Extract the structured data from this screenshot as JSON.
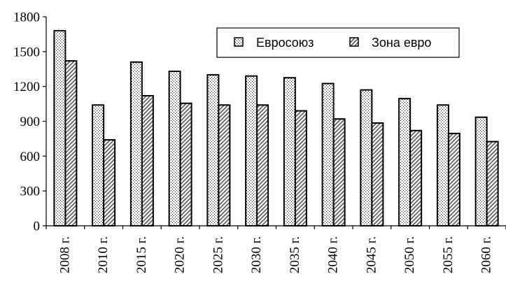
{
  "chart_data": {
    "type": "bar",
    "categories": [
      "2008 г.",
      "2010 г.",
      "2015 г.",
      "2020 г.",
      "2025 г.",
      "2030 г.",
      "2035 г.",
      "2040 г.",
      "2045 г.",
      "2050 г.",
      "2055 г.",
      "2060 г."
    ],
    "series": [
      {
        "name": "Евросоюз",
        "values": [
          1680,
          1040,
          1410,
          1330,
          1300,
          1290,
          1275,
          1225,
          1170,
          1095,
          1040,
          935
        ]
      },
      {
        "name": "Зона евро",
        "values": [
          1420,
          740,
          1120,
          1055,
          1040,
          1040,
          990,
          920,
          885,
          820,
          795,
          725
        ]
      }
    ],
    "yticks": [
      "0",
      "300",
      "600",
      "900",
      "1200",
      "1500",
      "1800"
    ],
    "ylim": [
      0,
      1800
    ],
    "grid": false,
    "legend_position": "top-right",
    "title": "",
    "xlabel": "",
    "ylabel": ""
  }
}
